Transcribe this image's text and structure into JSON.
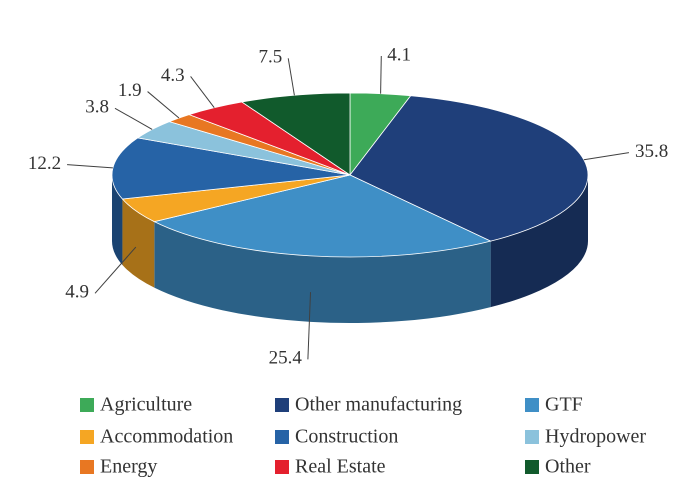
{
  "chart_data": {
    "type": "pie3d",
    "categories": [
      "Agriculture",
      "Other manufacturing",
      "GTF",
      "Accommodation",
      "Construction",
      "Hydropower",
      "Energy",
      "Real Estate",
      "Other"
    ],
    "values": [
      4.1,
      35.8,
      25.4,
      4.9,
      12.2,
      3.8,
      1.9,
      4.3,
      7.5
    ],
    "colors": [
      "#3daa58",
      "#1f3f7a",
      "#3f8fc6",
      "#f5a623",
      "#2663a6",
      "#8bc2dc",
      "#e87722",
      "#e4202e",
      "#115a2c"
    ],
    "legend": "bottom"
  }
}
